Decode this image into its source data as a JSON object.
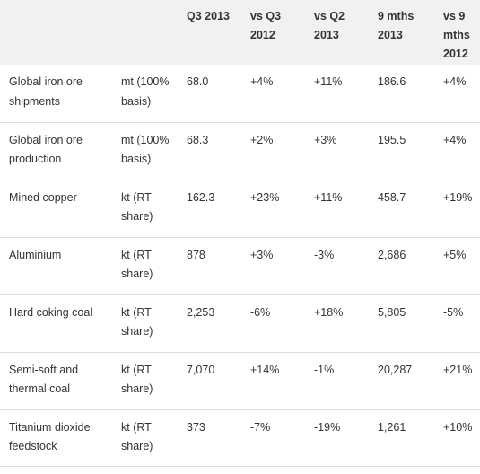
{
  "table": {
    "headers": [
      "",
      "",
      "Q3 2013",
      "vs Q3 2012",
      "vs Q2 2013",
      "9 mths 2013",
      "vs 9 mths 2012"
    ],
    "rows": [
      [
        "Global iron ore shipments",
        "mt (100% basis)",
        "68.0",
        "+4%",
        "+11%",
        "186.6",
        "+4%"
      ],
      [
        "Global iron ore production",
        "mt (100% basis)",
        "68.3",
        "+2%",
        "+3%",
        "195.5",
        "+4%"
      ],
      [
        "Mined copper",
        "kt (RT share)",
        "162.3",
        "+23%",
        "+11%",
        "458.7",
        "+19%"
      ],
      [
        "Aluminium",
        "kt (RT share)",
        "878",
        "+3%",
        "-3%",
        "2,686",
        "+5%"
      ],
      [
        "Hard coking coal",
        "kt (RT share)",
        "2,253",
        "-6%",
        "+18%",
        "5,805",
        "-5%"
      ],
      [
        "Semi-soft and thermal coal",
        "kt (RT share)",
        "7,070",
        "+14%",
        "-1%",
        "20,287",
        "+21%"
      ],
      [
        "Titanium dioxide feedstock",
        "kt (RT share)",
        "373",
        "-7%",
        "-19%",
        "1,261",
        "+10%"
      ]
    ]
  }
}
